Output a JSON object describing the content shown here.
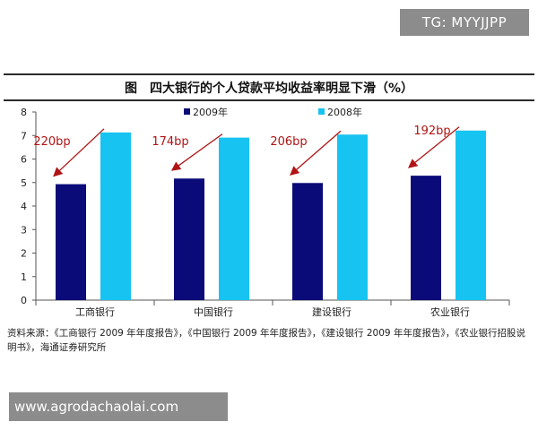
{
  "watermark_top": "TG: MYYJJPP",
  "watermark_bottom": "www.agrodachaolai.com",
  "source_note": "资料来源：《工商银行 2009 年年度报告》，《中国银行 2009 年年度报告》，《建设银行 2009 年年度报告》，《农业银行招股说明书》，海通证券研究所",
  "chart_data": {
    "type": "bar",
    "title": "图　四大银行的个人贷款平均收益率明显下滑（%）",
    "categories": [
      "工商银行",
      "中国银行",
      "建设银行",
      "农业银行"
    ],
    "series": [
      {
        "name": "2009年",
        "values": [
          4.93,
          5.17,
          4.98,
          5.29
        ],
        "color": "#0a0a78"
      },
      {
        "name": "2008年",
        "values": [
          7.13,
          6.91,
          7.04,
          7.21
        ],
        "color": "#17c3f0"
      }
    ],
    "annotations": [
      "220bp",
      "174bp",
      "206bp",
      "192bp"
    ],
    "annotation_color": "#b01414",
    "ylim": [
      0,
      8
    ],
    "yticks": [
      0,
      1,
      2,
      3,
      4,
      5,
      6,
      7,
      8
    ],
    "grid": false,
    "legend_position": "top-center"
  }
}
